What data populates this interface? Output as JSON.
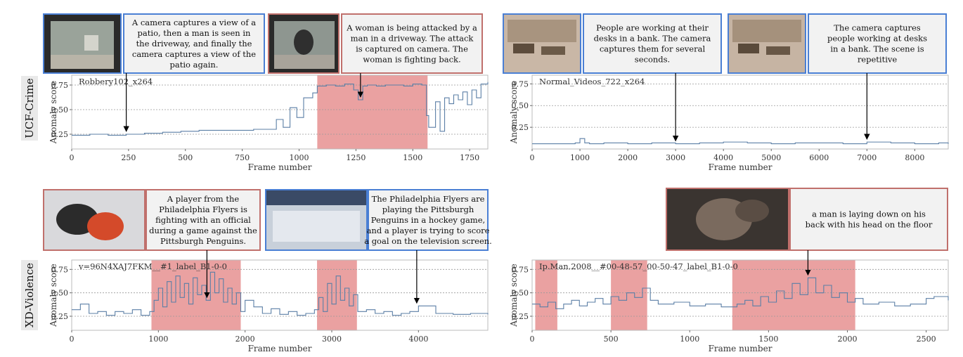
{
  "row_labels": [
    "UCF-Crime",
    "XD-Violence"
  ],
  "colors": {
    "line": "#5b7fa6",
    "highlight": "#eaa1a1",
    "normal_border": "#4a7fd4",
    "anomaly_border": "#c0706c",
    "caption_bg": "#f2f2f2",
    "row_label_bg": "#e9e9e9"
  },
  "chart_data": [
    {
      "type": "line",
      "title": "Robbery102_x264",
      "xlabel": "Frame number",
      "ylabel": "Anomaly score",
      "xlim": [
        0,
        1830
      ],
      "ylim": [
        0.1,
        0.85
      ],
      "xticks": [
        0,
        250,
        500,
        750,
        1000,
        1250,
        1500,
        1750
      ],
      "yticks": [
        0.25,
        0.5,
        0.75
      ],
      "grid": true,
      "anomaly_intervals": [
        [
          1080,
          1565
        ]
      ],
      "x": [
        0,
        80,
        160,
        240,
        320,
        400,
        480,
        560,
        640,
        720,
        800,
        880,
        900,
        930,
        960,
        990,
        1020,
        1060,
        1080,
        1120,
        1160,
        1200,
        1240,
        1260,
        1280,
        1300,
        1340,
        1380,
        1420,
        1460,
        1500,
        1540,
        1560,
        1570,
        1600,
        1620,
        1640,
        1660,
        1680,
        1700,
        1720,
        1740,
        1760,
        1780,
        1800,
        1830
      ],
      "y": [
        0.24,
        0.25,
        0.24,
        0.25,
        0.26,
        0.27,
        0.28,
        0.29,
        0.29,
        0.29,
        0.3,
        0.3,
        0.4,
        0.32,
        0.52,
        0.42,
        0.62,
        0.67,
        0.74,
        0.75,
        0.74,
        0.76,
        0.7,
        0.6,
        0.74,
        0.75,
        0.74,
        0.75,
        0.75,
        0.74,
        0.76,
        0.75,
        0.44,
        0.32,
        0.58,
        0.28,
        0.62,
        0.56,
        0.65,
        0.6,
        0.68,
        0.55,
        0.7,
        0.62,
        0.76,
        0.78
      ],
      "pointers": [
        {
          "frame": 240,
          "border": "normal",
          "caption": [
            "A camera captures a view of a",
            "patio, then a man is seen in",
            "the driveway, and finally the",
            "camera captures a view of the",
            "patio again."
          ]
        },
        {
          "frame": 1270,
          "border": "anomaly",
          "caption": [
            "A woman is being attacked by a",
            "man in a driveway. The attack",
            "is captured on camera. The",
            "woman is fighting back."
          ]
        }
      ]
    },
    {
      "type": "line",
      "title": "Normal_Videos_722_x264",
      "xlabel": "Frame number",
      "ylabel": "Anomaly score",
      "xlim": [
        0,
        8700
      ],
      "ylim": [
        0.0,
        0.85
      ],
      "xticks": [
        0,
        1000,
        2000,
        3000,
        4000,
        5000,
        6000,
        7000,
        8000
      ],
      "yticks": [
        0.25,
        0.5,
        0.75
      ],
      "grid": true,
      "anomaly_intervals": [],
      "x": [
        0,
        500,
        900,
        1000,
        1100,
        1200,
        1500,
        2000,
        2500,
        3000,
        3500,
        4000,
        4500,
        5000,
        5500,
        6000,
        6500,
        7000,
        7500,
        8000,
        8500,
        8700
      ],
      "y": [
        0.06,
        0.06,
        0.07,
        0.12,
        0.07,
        0.06,
        0.07,
        0.06,
        0.07,
        0.06,
        0.07,
        0.08,
        0.07,
        0.06,
        0.07,
        0.07,
        0.06,
        0.08,
        0.07,
        0.06,
        0.07,
        0.06
      ],
      "pointers": [
        {
          "frame": 3000,
          "border": "normal",
          "caption": [
            "People are working at their",
            "desks in a bank. The camera",
            "captures them for several",
            "seconds."
          ]
        },
        {
          "frame": 7000,
          "border": "normal",
          "caption": [
            "The camera captures",
            "people working at desks",
            "in a bank. The scene is",
            "repetitive"
          ]
        }
      ]
    },
    {
      "type": "line",
      "title": "v=96N4XAJ7FKM__#1_label_B1-0-0",
      "xlabel": "Frame number",
      "ylabel": "Anomaly score",
      "xlim": [
        0,
        4800
      ],
      "ylim": [
        0.1,
        0.85
      ],
      "xticks": [
        0,
        1000,
        2000,
        3000,
        4000
      ],
      "yticks": [
        0.25,
        0.5,
        0.75
      ],
      "grid": true,
      "anomaly_intervals": [
        [
          920,
          1950
        ],
        [
          2830,
          3290
        ]
      ],
      "x": [
        0,
        100,
        200,
        300,
        400,
        500,
        600,
        700,
        800,
        900,
        950,
        1000,
        1050,
        1100,
        1150,
        1200,
        1250,
        1300,
        1350,
        1400,
        1450,
        1500,
        1550,
        1600,
        1650,
        1700,
        1750,
        1800,
        1850,
        1900,
        1950,
        2000,
        2100,
        2200,
        2300,
        2400,
        2500,
        2600,
        2700,
        2800,
        2850,
        2900,
        2950,
        3000,
        3050,
        3100,
        3150,
        3200,
        3250,
        3300,
        3400,
        3500,
        3600,
        3700,
        3800,
        3900,
        4000,
        4200,
        4400,
        4600,
        4800
      ],
      "y": [
        0.32,
        0.38,
        0.28,
        0.3,
        0.26,
        0.3,
        0.28,
        0.32,
        0.26,
        0.3,
        0.42,
        0.55,
        0.35,
        0.62,
        0.4,
        0.68,
        0.45,
        0.6,
        0.38,
        0.66,
        0.48,
        0.58,
        0.42,
        0.72,
        0.5,
        0.65,
        0.4,
        0.55,
        0.38,
        0.5,
        0.3,
        0.42,
        0.35,
        0.28,
        0.33,
        0.27,
        0.3,
        0.26,
        0.28,
        0.32,
        0.45,
        0.3,
        0.6,
        0.38,
        0.68,
        0.42,
        0.55,
        0.36,
        0.48,
        0.3,
        0.32,
        0.28,
        0.3,
        0.26,
        0.28,
        0.3,
        0.36,
        0.28,
        0.27,
        0.28,
        0.27
      ],
      "pointers": [
        {
          "frame": 1560,
          "border": "anomaly",
          "caption": [
            "A player from the",
            "Philadelphia Flyers is",
            "fighting with an official",
            "during a game against the",
            "Pittsburgh Penguins."
          ]
        },
        {
          "frame": 3980,
          "border": "normal",
          "caption": [
            "The Philadelphia Flyers are",
            "playing the Pittsburgh",
            "Penguins in a hockey game,",
            "and a player is trying to score",
            "a goal on the television screen."
          ]
        }
      ]
    },
    {
      "type": "line",
      "title": "Ip.Man.2008__#00-48-57_00-50-47_label_B1-0-0",
      "xlabel": "Frame number",
      "ylabel": "Anomaly score",
      "xlim": [
        0,
        2640
      ],
      "ylim": [
        0.1,
        0.85
      ],
      "xticks": [
        0,
        500,
        1000,
        1500,
        2000,
        2500
      ],
      "yticks": [
        0.25,
        0.5,
        0.75
      ],
      "grid": true,
      "anomaly_intervals": [
        [
          20,
          160
        ],
        [
          500,
          730
        ],
        [
          1270,
          2050
        ]
      ],
      "x": [
        0,
        50,
        100,
        150,
        200,
        250,
        300,
        350,
        400,
        450,
        500,
        550,
        600,
        650,
        700,
        750,
        800,
        900,
        1000,
        1100,
        1200,
        1300,
        1350,
        1400,
        1450,
        1500,
        1550,
        1600,
        1650,
        1700,
        1750,
        1800,
        1850,
        1900,
        1950,
        2000,
        2050,
        2100,
        2200,
        2300,
        2400,
        2500,
        2550,
        2640
      ],
      "y": [
        0.38,
        0.35,
        0.4,
        0.33,
        0.38,
        0.42,
        0.36,
        0.4,
        0.44,
        0.38,
        0.46,
        0.42,
        0.5,
        0.45,
        0.55,
        0.42,
        0.38,
        0.4,
        0.36,
        0.38,
        0.35,
        0.38,
        0.42,
        0.36,
        0.46,
        0.4,
        0.52,
        0.44,
        0.6,
        0.48,
        0.66,
        0.5,
        0.58,
        0.45,
        0.5,
        0.4,
        0.44,
        0.38,
        0.4,
        0.36,
        0.38,
        0.44,
        0.46,
        0.42
      ],
      "pointers": [
        {
          "frame": 1750,
          "border": "anomaly",
          "caption": [
            "a man is laying down on his",
            "back with his head on the floor"
          ]
        }
      ]
    }
  ]
}
